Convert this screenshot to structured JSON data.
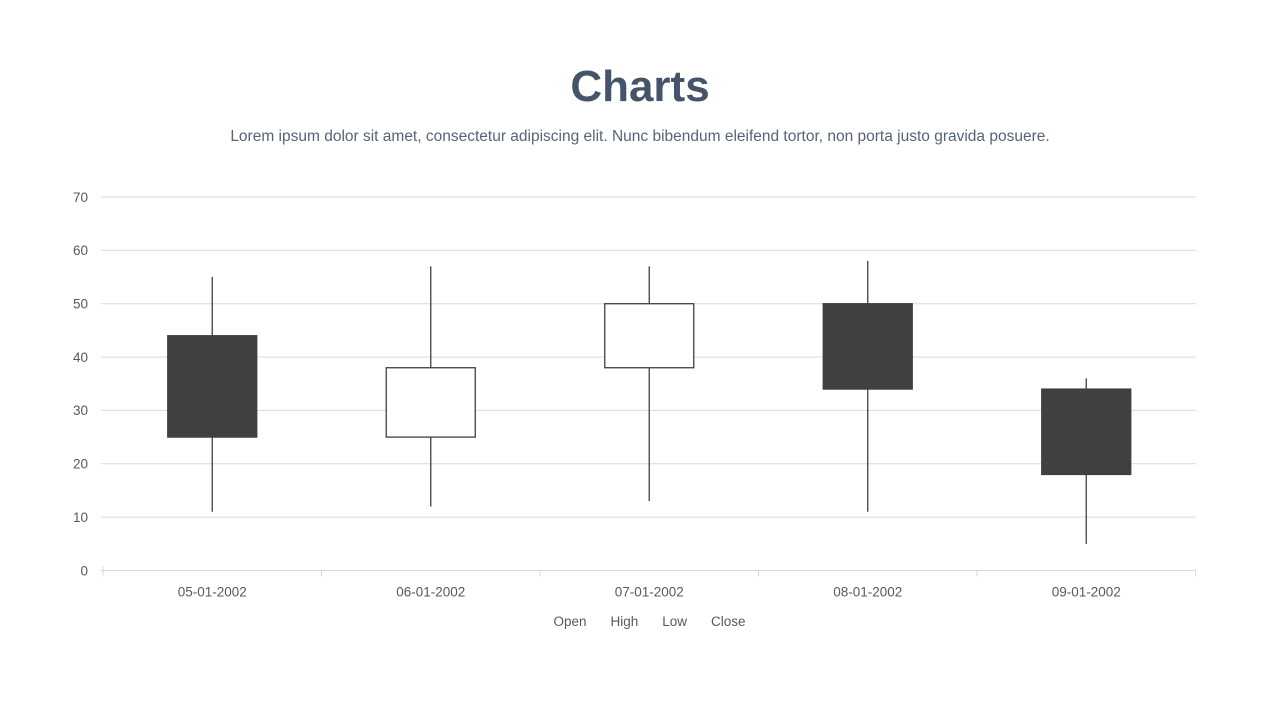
{
  "header": {
    "title": "Charts",
    "subtitle": "Lorem ipsum dolor sit amet, consectetur adipiscing elit. Nunc bibendum eleifend tortor, non porta justo gravida posuere."
  },
  "chart_data": {
    "type": "candlestick",
    "categories": [
      "05-01-2002",
      "06-01-2002",
      "07-01-2002",
      "08-01-2002",
      "09-01-2002"
    ],
    "series": [
      {
        "name": "Open",
        "values": [
          44,
          25,
          38,
          50,
          34
        ]
      },
      {
        "name": "High",
        "values": [
          55,
          57,
          57,
          58,
          36
        ]
      },
      {
        "name": "Low",
        "values": [
          11,
          12,
          13,
          11,
          5
        ]
      },
      {
        "name": "Close",
        "values": [
          25,
          38,
          50,
          34,
          18
        ]
      }
    ],
    "legend": [
      "Open",
      "High",
      "Low",
      "Close"
    ],
    "legend_position": "bottom",
    "ylim": [
      0,
      70
    ],
    "ytick_step": 10,
    "grid": true,
    "colors": {
      "up_fill": "#ffffff",
      "down_fill": "#404040",
      "candle_stroke": "#404040",
      "gridline": "#d9d9d9",
      "axis_text": "#595959",
      "title_text": "#44546a",
      "subtitle_text": "#566477"
    }
  }
}
